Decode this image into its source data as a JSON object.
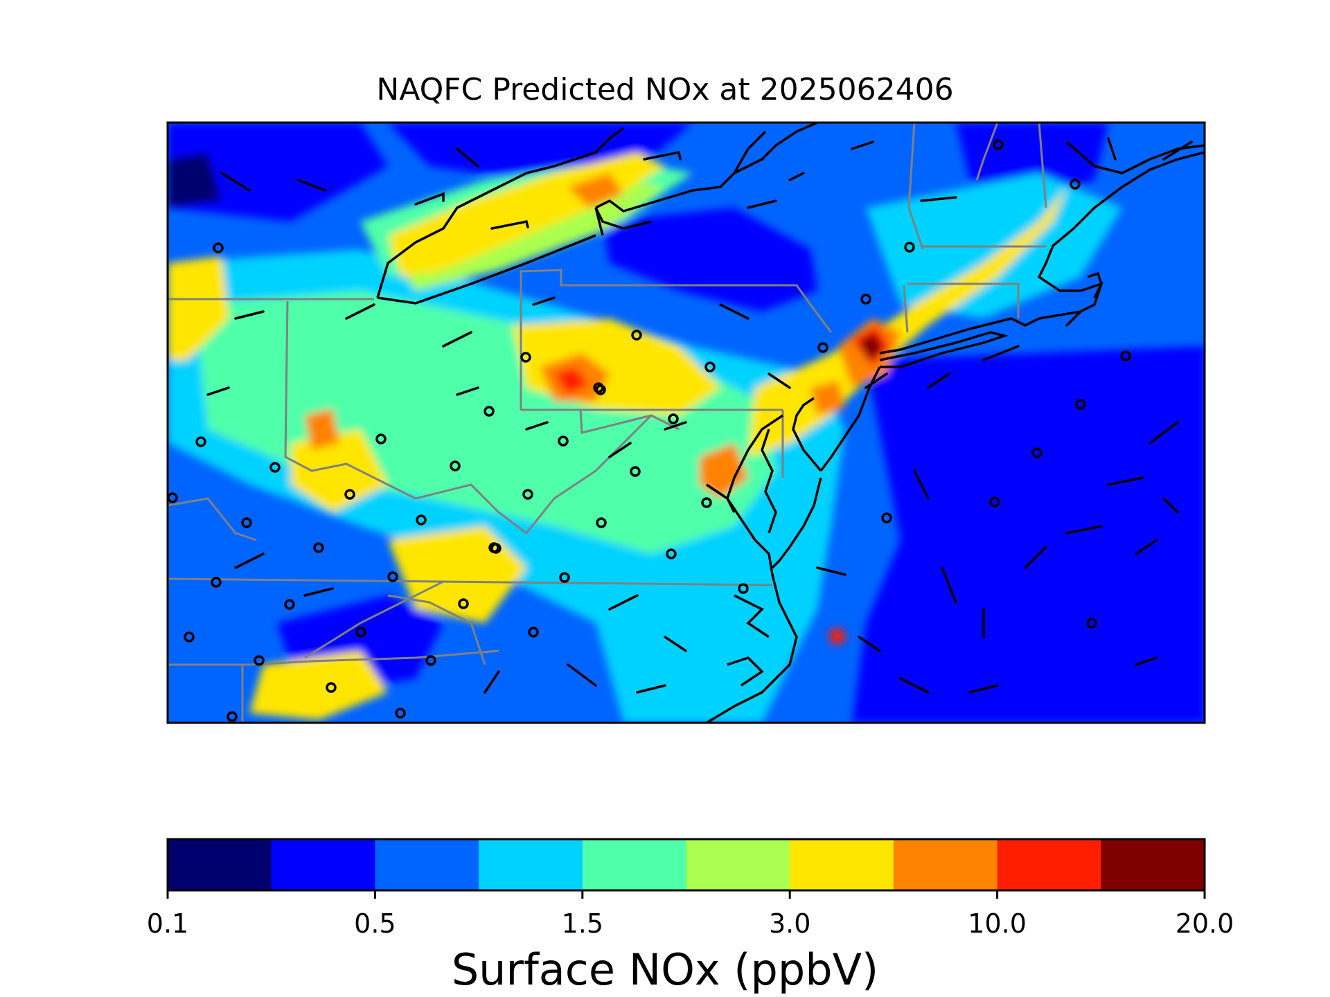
{
  "title": "NAQFC Predicted NOx at 2025062406",
  "colorbar": {
    "label": "Surface NOx (ppbV)",
    "ticks": [
      "0.1",
      "0.5",
      "1.5",
      "3.0",
      "10.0",
      "20.0"
    ],
    "bins": [
      "#00006e",
      "#0000ff",
      "#0064ff",
      "#00d2ff",
      "#50ffaa",
      "#aaff50",
      "#ffe600",
      "#ff8200",
      "#ff1e00",
      "#800000"
    ]
  },
  "map": {
    "region": "US Mid-Atlantic / Northeast",
    "state_border_color": "#808080",
    "coastline_color": "#000000",
    "background_level_color": "#0064ff"
  },
  "chart_data": {
    "type": "heatmap",
    "title": "NAQFC Predicted NOx at 2025062406",
    "colorbar_label": "Surface NOx (ppbV)",
    "colorbar_ticks": [
      0.1,
      0.5,
      1.5,
      3.0,
      10.0,
      20.0
    ],
    "bin_count": 10
  }
}
